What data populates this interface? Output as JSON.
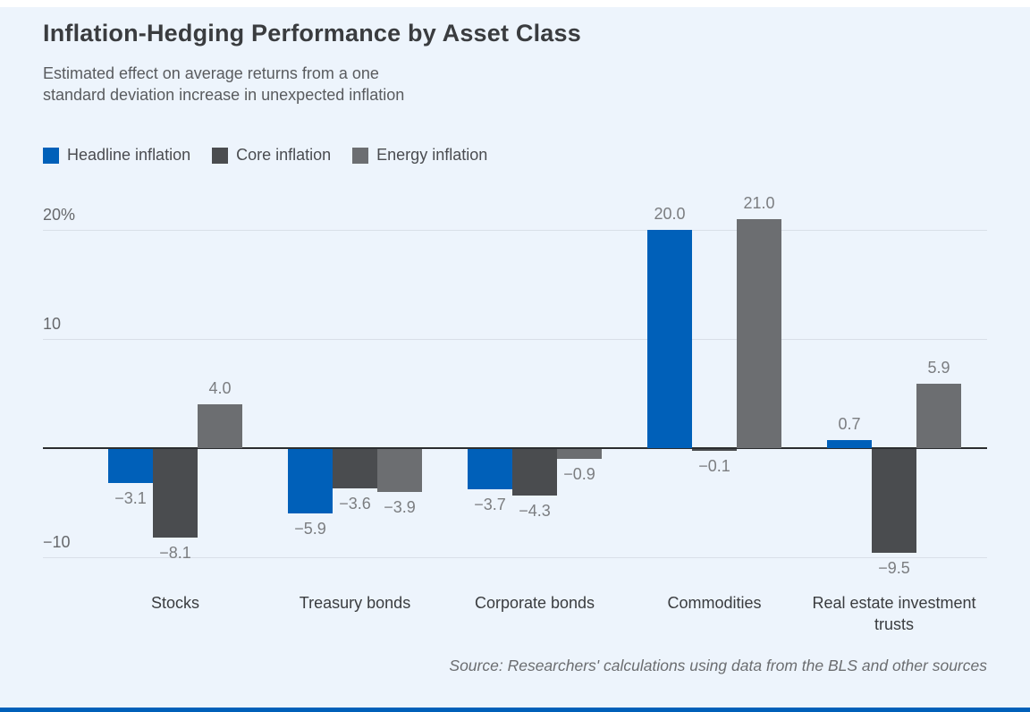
{
  "colors": {
    "page_background": "#edf4fc",
    "top_strip": "#ffffff",
    "footer_bar": "#0060b9",
    "zero_axis": "#2b2d2f",
    "gridline": "#d9dfe8"
  },
  "chart_data": {
    "type": "bar",
    "title": "Inflation-Hedging Performance by Asset Class",
    "subtitle_lines": [
      "Estimated effect on average returns from a one",
      "standard deviation increase in unexpected inflation"
    ],
    "categories": [
      "Stocks",
      "Treasury bonds",
      "Corporate bonds",
      "Commodities",
      "Real estate investment trusts"
    ],
    "series": [
      {
        "name": "Headline inflation",
        "color": "#0060b9",
        "values": [
          -3.1,
          -5.9,
          -3.7,
          20.0,
          0.7
        ],
        "labels": [
          "−3.1",
          "−5.9",
          "−3.7",
          "20.0",
          "0.7"
        ]
      },
      {
        "name": "Core inflation",
        "color": "#4a4c4f",
        "values": [
          -8.1,
          -3.6,
          -4.3,
          -0.1,
          -9.5
        ],
        "labels": [
          "−8.1",
          "−3.6",
          "−4.3",
          "−0.1",
          "−9.5"
        ]
      },
      {
        "name": "Energy inflation",
        "color": "#6c6e71",
        "values": [
          4.0,
          -3.9,
          -0.9,
          21.0,
          5.9
        ],
        "labels": [
          "4.0",
          "−3.9",
          "−0.9",
          "21.0",
          "5.9"
        ]
      }
    ],
    "y_ticks": [
      {
        "value": 20,
        "label": "20%"
      },
      {
        "value": 10,
        "label": "10"
      },
      {
        "value": -10,
        "label": "−10"
      }
    ],
    "ylabel": "",
    "xlabel": "",
    "ylim": [
      -12,
      23
    ],
    "grid": true,
    "legend_position": "top-left",
    "source": "Source: Researchers' calculations using data from the BLS and other sources"
  }
}
